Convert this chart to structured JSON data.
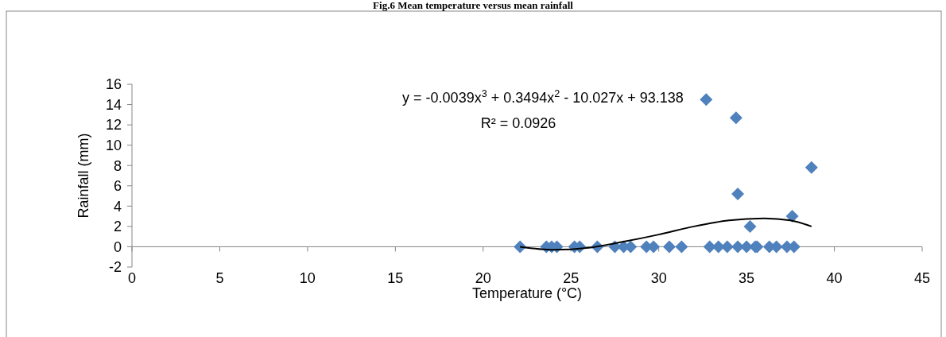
{
  "chart_data": {
    "type": "scatter",
    "title": "Fig.6 Mean temperature versus mean rainfall",
    "xlabel": "Temperature (°C)",
    "ylabel": "Rainfall (mm)",
    "xlim": [
      0,
      45
    ],
    "xticks": [
      0,
      5,
      10,
      15,
      20,
      25,
      30,
      35,
      40,
      45
    ],
    "ylim": [
      -2,
      16
    ],
    "yticks": [
      -2,
      0,
      2,
      4,
      6,
      8,
      10,
      12,
      14,
      16
    ],
    "grid": false,
    "marker": "diamond",
    "annotations": [
      "y = -0.0039x$^{3}$ + 0.3494x$^{2}$ - 10.027x + 93.138",
      "R² = 0.0926"
    ],
    "series": [
      {
        "color": "#4f81bd",
        "x": [
          22.1,
          23.6,
          23.9,
          24.2,
          25.2,
          25.5,
          26.5,
          27.5,
          28.0,
          28.4,
          29.3,
          29.7,
          30.6,
          31.3,
          32.9,
          33.4,
          33.9,
          34.5,
          35.0,
          35.5,
          35.6,
          36.3,
          36.7,
          37.3,
          37.7,
          32.7,
          34.4,
          34.5,
          35.2,
          37.6,
          38.7
        ],
        "values": [
          0,
          0,
          0,
          0,
          0,
          0,
          0,
          0,
          0,
          0,
          0,
          0,
          0,
          0,
          0,
          0,
          0,
          0,
          0,
          0,
          0,
          0,
          0,
          0,
          0,
          14.5,
          12.7,
          5.2,
          2.0,
          3.0,
          7.8
        ]
      },
      {
        "type": "line",
        "color": "#000000",
        "line_style": "solid",
        "marker": "none",
        "x": [
          22.1,
          24,
          26,
          28,
          30,
          32,
          34,
          36,
          37.5,
          38.7
        ],
        "values": [
          0,
          -0.3,
          -0.1,
          0.5,
          1.2,
          2.0,
          2.6,
          2.8,
          2.6,
          2.0
        ]
      }
    ]
  }
}
